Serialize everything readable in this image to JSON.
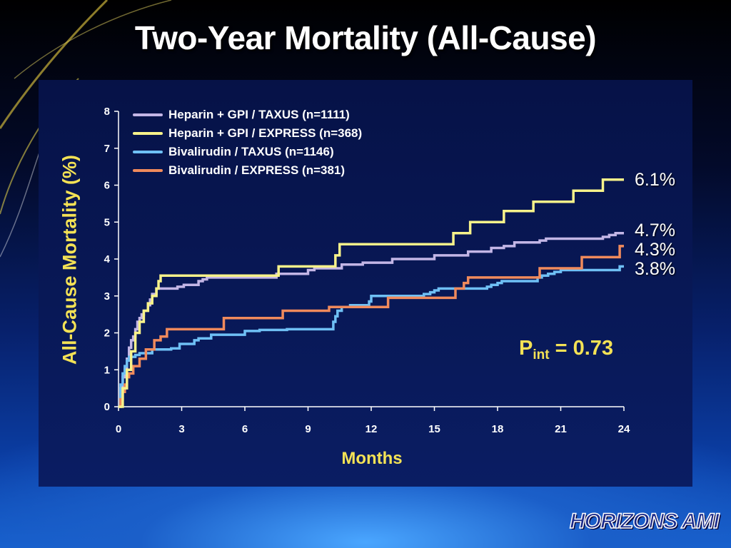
{
  "slide": {
    "title": "Two-Year Mortality (All-Cause)",
    "p_prefix": "P",
    "p_sub": "int",
    "p_value": " = 0.73",
    "logo_text": "HORIZONS AMI"
  },
  "chart_data": {
    "type": "line",
    "step": true,
    "xlabel": "Months",
    "ylabel": "All-Cause Mortality (%)",
    "xlim": [
      0,
      24
    ],
    "ylim": [
      0,
      8
    ],
    "xticks": [
      0,
      3,
      6,
      9,
      12,
      15,
      18,
      21,
      24
    ],
    "yticks": [
      0,
      1,
      2,
      3,
      4,
      5,
      6,
      7,
      8
    ],
    "grid": false,
    "legend_position": "top-left",
    "colors": {
      "title": "#ffffff",
      "axis_label": "#f4e255",
      "tick": "#ffffff"
    },
    "series": [
      {
        "name": "Heparin + GPI / TAXUS (n=1111)",
        "color": "#c3b6e6",
        "end_label": "4.7%",
        "x": [
          0,
          0.1,
          0.2,
          0.3,
          0.4,
          0.5,
          0.6,
          0.7,
          0.8,
          0.9,
          1.0,
          1.1,
          1.2,
          1.3,
          1.4,
          1.5,
          1.6,
          1.8,
          2.4,
          2.8,
          3.1,
          3.8,
          4.0,
          4.2,
          7.5,
          9.0,
          9.3,
          10.6,
          11.6,
          13.0,
          15.0,
          16.6,
          17.7,
          18.3,
          18.8,
          19.5,
          20.0,
          20.3,
          23.0,
          23.3,
          23.6,
          24.0
        ],
        "y": [
          0,
          0.5,
          0.8,
          1.0,
          1.3,
          1.6,
          1.8,
          1.9,
          2.1,
          2.3,
          2.4,
          2.5,
          2.6,
          2.6,
          2.75,
          2.9,
          3.05,
          3.2,
          3.2,
          3.25,
          3.3,
          3.4,
          3.45,
          3.5,
          3.6,
          3.7,
          3.75,
          3.85,
          3.9,
          4.0,
          4.1,
          4.2,
          4.3,
          4.35,
          4.45,
          4.45,
          4.5,
          4.55,
          4.6,
          4.65,
          4.7,
          4.7
        ]
      },
      {
        "name": "Heparin + GPI / EXPRESS (n=368)",
        "color": "#f7f28a",
        "end_label": "6.1%",
        "x": [
          0,
          0.2,
          0.4,
          0.6,
          0.8,
          1.0,
          1.2,
          1.4,
          1.6,
          1.8,
          1.9,
          2.0,
          7.6,
          10.3,
          10.5,
          15.9,
          16.7,
          18.3,
          19.7,
          21.6,
          23.0,
          24.0
        ],
        "y": [
          0,
          0.5,
          1.0,
          1.5,
          2.0,
          2.3,
          2.6,
          2.8,
          3.0,
          3.2,
          3.4,
          3.55,
          3.8,
          4.1,
          4.4,
          4.7,
          5.0,
          5.3,
          5.55,
          5.85,
          6.15,
          6.15
        ]
      },
      {
        "name": "Bivalirudin / TAXUS (n=1146)",
        "color": "#6fc0f5",
        "end_label": "3.8%",
        "x": [
          0,
          0.1,
          0.2,
          0.3,
          0.4,
          0.5,
          0.8,
          1.0,
          1.6,
          2.5,
          2.9,
          3.6,
          3.8,
          4.4,
          6.0,
          6.7,
          8.0,
          10.2,
          10.3,
          10.4,
          10.6,
          11.0,
          11.9,
          12.0,
          12.3,
          13.0,
          14.5,
          14.8,
          15.0,
          15.2,
          16.2,
          17.5,
          17.7,
          18.0,
          18.2,
          19.9,
          20.1,
          20.4,
          20.7,
          21.0,
          21.8,
          22.5,
          23.8,
          24.0
        ],
        "y": [
          0,
          0.6,
          0.9,
          1.1,
          1.25,
          1.35,
          1.4,
          1.45,
          1.55,
          1.58,
          1.7,
          1.8,
          1.85,
          1.95,
          2.05,
          2.08,
          2.1,
          2.3,
          2.45,
          2.6,
          2.7,
          2.75,
          2.85,
          3.0,
          3.0,
          3.0,
          3.05,
          3.1,
          3.15,
          3.2,
          3.2,
          3.25,
          3.3,
          3.35,
          3.4,
          3.5,
          3.55,
          3.6,
          3.65,
          3.7,
          3.7,
          3.7,
          3.8,
          3.8
        ]
      },
      {
        "name": "Bivalirudin / EXPRESS (n=381)",
        "color": "#f08a5c",
        "end_label": "4.3%",
        "x": [
          0,
          0.1,
          0.2,
          0.3,
          0.4,
          0.5,
          0.7,
          1.0,
          1.3,
          1.7,
          2.0,
          2.3,
          4.2,
          5.0,
          7.8,
          10.0,
          12.8,
          16.0,
          16.4,
          16.6,
          19.7,
          20.0,
          21.5,
          22.0,
          23.0,
          23.8,
          24.0
        ],
        "y": [
          0,
          0.2,
          0.4,
          0.6,
          0.8,
          0.9,
          1.1,
          1.3,
          1.55,
          1.8,
          1.9,
          2.1,
          2.1,
          2.4,
          2.6,
          2.7,
          2.95,
          3.2,
          3.35,
          3.5,
          3.5,
          3.75,
          3.75,
          4.05,
          4.05,
          4.35,
          4.35
        ]
      }
    ]
  }
}
